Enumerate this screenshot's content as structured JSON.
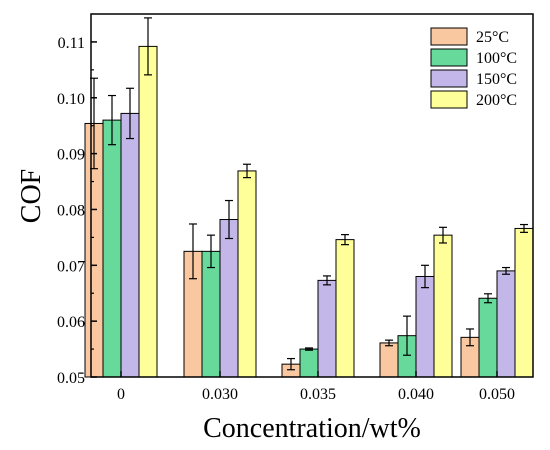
{
  "chart_data": {
    "type": "bar",
    "title": "",
    "xlabel": "Concentration/wt%",
    "ylabel": "COF",
    "ylim": [
      0.05,
      0.115
    ],
    "yticks": [
      0.05,
      0.06,
      0.07,
      0.08,
      0.09,
      0.1,
      0.11
    ],
    "ytick_labels": [
      "0.05",
      "0.06",
      "0.07",
      "0.08",
      "0.09",
      "0.10",
      "0.11"
    ],
    "categories": [
      "0",
      "0.030",
      "0.035",
      "0.040",
      "0.050"
    ],
    "legend_position": "top-right",
    "grid": false,
    "error_bars": true,
    "series": [
      {
        "name": "25°C",
        "color": "#f9c8a0",
        "values": [
          0.0954,
          0.0725,
          0.0523,
          0.0561,
          0.0571
        ],
        "errors": [
          0.0081,
          0.0049,
          0.001,
          0.0005,
          0.0015
        ]
      },
      {
        "name": "100°C",
        "color": "#67d99b",
        "values": [
          0.096,
          0.0725,
          0.055,
          0.0574,
          0.0641
        ],
        "errors": [
          0.0044,
          0.0029,
          0.0002,
          0.0035,
          0.0008
        ]
      },
      {
        "name": "150°C",
        "color": "#c2b7e8",
        "values": [
          0.0972,
          0.0782,
          0.0673,
          0.068,
          0.069
        ],
        "errors": [
          0.0045,
          0.0034,
          0.0008,
          0.002,
          0.0006
        ]
      },
      {
        "name": "200°C",
        "color": "#ffff99",
        "values": [
          0.1092,
          0.0869,
          0.0746,
          0.0754,
          0.0766
        ],
        "errors": [
          0.0051,
          0.0012,
          0.0009,
          0.0014,
          0.0007
        ]
      }
    ]
  }
}
